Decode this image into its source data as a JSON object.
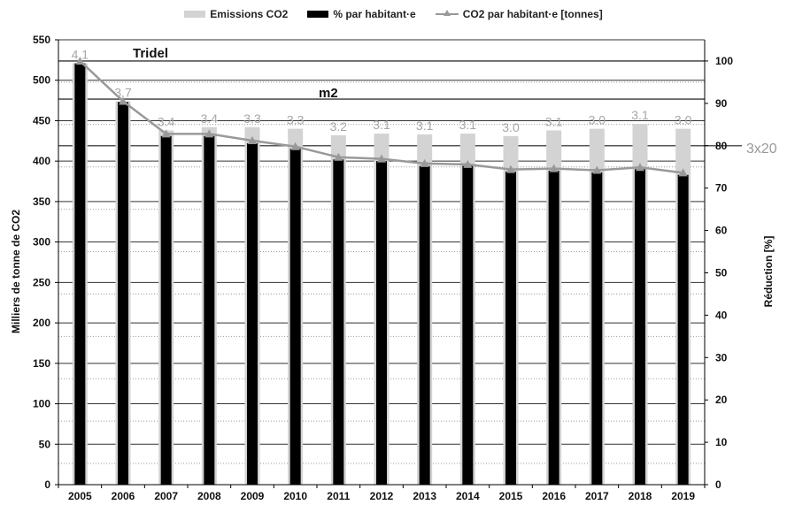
{
  "legend": {
    "emissions": "Emissions CO2",
    "pct": "% par habitant·e",
    "per_capita": "CO2 par habitant·e [tonnes]"
  },
  "annotations": {
    "tridel": "Tridel",
    "m2": "m2",
    "threex20": "3x20"
  },
  "colors": {
    "emissions": "#d3d3d3",
    "pct": "#000000",
    "per_capita_line": "#999999",
    "value_labels": "#a6a6a6"
  },
  "chart_data": {
    "type": "bar",
    "categories": [
      "2005",
      "2006",
      "2007",
      "2008",
      "2009",
      "2010",
      "2011",
      "2012",
      "2013",
      "2014",
      "2015",
      "2016",
      "2017",
      "2018",
      "2019"
    ],
    "ylabel": "Milliers de tonne de CO2",
    "y2label": "Réduction [%]",
    "ylim": [
      0,
      550
    ],
    "y2lim": [
      0,
      105
    ],
    "yticks": [
      0,
      50,
      100,
      150,
      200,
      250,
      300,
      350,
      400,
      450,
      500,
      550
    ],
    "y2ticks": [
      0,
      10,
      20,
      30,
      40,
      50,
      60,
      70,
      80,
      90,
      100
    ],
    "grid": true,
    "legend_position": "top",
    "series": [
      {
        "name": "Emissions CO2",
        "axis": "left",
        "kind": "bar",
        "values": [
          521,
          474,
          438,
          442,
          442,
          440,
          432,
          434,
          433,
          434,
          431,
          438,
          440,
          446,
          440
        ]
      },
      {
        "name": "% par habitant·e",
        "axis": "left",
        "kind": "bar",
        "values": [
          521,
          473,
          431,
          431,
          422,
          415,
          402,
          400,
          394,
          394,
          387,
          388,
          386,
          390,
          383
        ]
      },
      {
        "name": "CO2 par habitant·e [tonnes]",
        "axis": "right",
        "kind": "line",
        "values": [
          100,
          90.5,
          82.8,
          82.8,
          81.2,
          79.8,
          77.3,
          76.9,
          75.8,
          75.6,
          74.4,
          74.6,
          74.2,
          74.9,
          73.6
        ],
        "labels": [
          "4.1",
          "3.7",
          "3.4",
          "3.4",
          "3.3",
          "3.3",
          "3.2",
          "3.1",
          "3.1",
          "3.1",
          "3.0",
          "3.1",
          "3.0",
          "3.1",
          "3.0"
        ]
      }
    ],
    "reference_lines_right_axis": [
      {
        "label": "Tridel",
        "value": 100
      },
      {
        "label": "m2",
        "value": 91
      },
      {
        "label": "3x20",
        "value": 80
      }
    ]
  }
}
